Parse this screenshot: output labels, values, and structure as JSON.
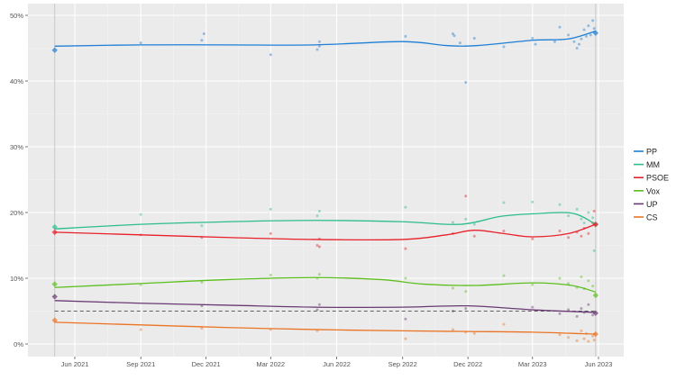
{
  "chart_data": {
    "type": "line",
    "title": "",
    "xlabel": "",
    "ylabel": "",
    "xlim": [
      "2021-04-20",
      "2023-06-20"
    ],
    "ylim": [
      -1.5,
      52
    ],
    "grid": true,
    "legend_position": "right",
    "y_ticks": [
      0,
      10,
      20,
      30,
      40,
      50
    ],
    "y_tick_labels": [
      "0%",
      "10%",
      "20%",
      "30%",
      "40%",
      "50%"
    ],
    "x_ticks": [
      "2021-06-01",
      "2021-09-01",
      "2021-12-01",
      "2022-03-01",
      "2022-06-01",
      "2022-09-01",
      "2022-12-01",
      "2023-03-01",
      "2023-06-01"
    ],
    "x_tick_labels": [
      "Jun 2021",
      "Sep 2021",
      "Dec 2021",
      "Mar 2022",
      "Jun 2022",
      "Sep 2022",
      "Dec 2022",
      "Mar 2023",
      "Jun 2023"
    ],
    "vertical_lines": [
      "2021-05-04",
      "2023-05-28"
    ],
    "threshold": 5,
    "series": [
      {
        "name": "PP",
        "color": "#1f7fd6",
        "trend": [
          [
            "2021-05-04",
            45.3
          ],
          [
            "2021-09-01",
            45.5
          ],
          [
            "2022-01-01",
            45.5
          ],
          [
            "2022-05-01",
            45.5
          ],
          [
            "2022-09-01",
            46.0
          ],
          [
            "2022-11-01",
            45.4
          ],
          [
            "2022-12-15",
            45.4
          ],
          [
            "2023-03-01",
            46.2
          ],
          [
            "2023-04-20",
            46.4
          ],
          [
            "2023-05-28",
            47.6
          ]
        ],
        "start": 44.7,
        "end": 47.3,
        "polls": [
          [
            "2021-09-01",
            45.8
          ],
          [
            "2021-11-25",
            46.2
          ],
          [
            "2021-11-28",
            47.2
          ],
          [
            "2022-03-01",
            44.0
          ],
          [
            "2022-05-05",
            44.8
          ],
          [
            "2022-05-08",
            46.0
          ],
          [
            "2022-05-08",
            45.3
          ],
          [
            "2022-09-05",
            46.8
          ],
          [
            "2022-11-10",
            47.2
          ],
          [
            "2022-11-12",
            46.9
          ],
          [
            "2022-11-20",
            45.8
          ],
          [
            "2022-11-28",
            39.8
          ],
          [
            "2022-12-10",
            46.5
          ],
          [
            "2023-01-20",
            45.2
          ],
          [
            "2023-03-01",
            46.5
          ],
          [
            "2023-03-05",
            45.6
          ],
          [
            "2023-04-01",
            46.0
          ],
          [
            "2023-04-08",
            48.2
          ],
          [
            "2023-04-20",
            47.0
          ],
          [
            "2023-04-28",
            46.0
          ],
          [
            "2023-05-02",
            45.0
          ],
          [
            "2023-05-05",
            45.6
          ],
          [
            "2023-05-08",
            46.4
          ],
          [
            "2023-05-12",
            47.8
          ],
          [
            "2023-05-15",
            46.8
          ],
          [
            "2023-05-18",
            48.4
          ],
          [
            "2023-05-21",
            47.0
          ],
          [
            "2023-05-24",
            49.2
          ],
          [
            "2023-05-26",
            48.0
          ]
        ]
      },
      {
        "name": "MM",
        "color": "#2dbd8f",
        "trend": [
          [
            "2021-05-04",
            17.5
          ],
          [
            "2021-09-01",
            18.2
          ],
          [
            "2022-01-01",
            18.6
          ],
          [
            "2022-05-01",
            18.8
          ],
          [
            "2022-09-01",
            18.6
          ],
          [
            "2022-11-20",
            18.2
          ],
          [
            "2023-01-15",
            19.4
          ],
          [
            "2023-03-01",
            19.8
          ],
          [
            "2023-04-25",
            19.9
          ],
          [
            "2023-05-28",
            18.2
          ]
        ],
        "start": 17.8,
        "end": 18.2,
        "polls": [
          [
            "2021-09-01",
            19.7
          ],
          [
            "2021-11-25",
            18.0
          ],
          [
            "2022-03-01",
            20.5
          ],
          [
            "2022-05-05",
            19.5
          ],
          [
            "2022-05-08",
            20.2
          ],
          [
            "2022-09-05",
            20.8
          ],
          [
            "2022-11-10",
            18.5
          ],
          [
            "2022-11-28",
            19.0
          ],
          [
            "2022-12-10",
            18.2
          ],
          [
            "2023-01-20",
            21.5
          ],
          [
            "2023-03-01",
            21.6
          ],
          [
            "2023-04-08",
            21.2
          ],
          [
            "2023-04-20",
            19.5
          ],
          [
            "2023-05-02",
            20.5
          ],
          [
            "2023-05-08",
            19.0
          ],
          [
            "2023-05-12",
            18.4
          ],
          [
            "2023-05-18",
            20.0
          ],
          [
            "2023-05-24",
            19.2
          ],
          [
            "2023-05-26",
            14.2
          ]
        ]
      },
      {
        "name": "PSOE",
        "color": "#e8202a",
        "trend": [
          [
            "2021-05-04",
            17.0
          ],
          [
            "2021-09-01",
            16.6
          ],
          [
            "2022-01-01",
            16.2
          ],
          [
            "2022-05-01",
            15.9
          ],
          [
            "2022-09-01",
            15.9
          ],
          [
            "2022-11-01",
            16.6
          ],
          [
            "2022-12-10",
            17.3
          ],
          [
            "2023-01-20",
            16.8
          ],
          [
            "2023-03-01",
            16.3
          ],
          [
            "2023-04-20",
            16.8
          ],
          [
            "2023-05-28",
            18.2
          ]
        ],
        "start": 17.0,
        "end": 18.2,
        "polls": [
          [
            "2021-09-01",
            16.6
          ],
          [
            "2021-11-25",
            16.2
          ],
          [
            "2022-03-01",
            16.8
          ],
          [
            "2022-05-05",
            15.0
          ],
          [
            "2022-05-08",
            16.0
          ],
          [
            "2022-05-08",
            14.8
          ],
          [
            "2022-09-05",
            14.5
          ],
          [
            "2022-11-10",
            16.8
          ],
          [
            "2022-11-28",
            22.5
          ],
          [
            "2022-12-10",
            16.4
          ],
          [
            "2023-01-20",
            17.2
          ],
          [
            "2023-03-01",
            16.0
          ],
          [
            "2023-04-08",
            17.2
          ],
          [
            "2023-04-20",
            16.2
          ],
          [
            "2023-05-02",
            17.0
          ],
          [
            "2023-05-08",
            16.4
          ],
          [
            "2023-05-12",
            17.6
          ],
          [
            "2023-05-18",
            16.8
          ],
          [
            "2023-05-24",
            18.4
          ],
          [
            "2023-05-26",
            20.2
          ]
        ]
      },
      {
        "name": "Vox",
        "color": "#5cbf1e",
        "trend": [
          [
            "2021-05-04",
            8.6
          ],
          [
            "2021-09-01",
            9.2
          ],
          [
            "2022-01-01",
            9.8
          ],
          [
            "2022-05-01",
            10.1
          ],
          [
            "2022-08-01",
            9.8
          ],
          [
            "2022-10-01",
            9.1
          ],
          [
            "2022-12-10",
            8.9
          ],
          [
            "2023-03-01",
            9.3
          ],
          [
            "2023-04-25",
            8.9
          ],
          [
            "2023-05-28",
            7.9
          ]
        ],
        "start": 9.1,
        "end": 7.4,
        "polls": [
          [
            "2021-09-01",
            9.0
          ],
          [
            "2021-11-25",
            9.4
          ],
          [
            "2022-03-01",
            10.5
          ],
          [
            "2022-05-05",
            10.0
          ],
          [
            "2022-05-08",
            10.6
          ],
          [
            "2022-09-05",
            10.0
          ],
          [
            "2022-11-10",
            8.5
          ],
          [
            "2022-11-28",
            8.0
          ],
          [
            "2023-01-20",
            10.4
          ],
          [
            "2023-03-01",
            9.0
          ],
          [
            "2023-04-08",
            10.0
          ],
          [
            "2023-04-20",
            9.2
          ],
          [
            "2023-05-02",
            8.6
          ],
          [
            "2023-05-08",
            10.2
          ],
          [
            "2023-05-12",
            8.4
          ],
          [
            "2023-05-18",
            9.6
          ],
          [
            "2023-05-24",
            8.8
          ]
        ]
      },
      {
        "name": "UP",
        "color": "#6a3a74",
        "trend": [
          [
            "2021-05-04",
            6.6
          ],
          [
            "2021-09-01",
            6.2
          ],
          [
            "2022-01-01",
            5.9
          ],
          [
            "2022-05-01",
            5.6
          ],
          [
            "2022-09-01",
            5.6
          ],
          [
            "2022-12-01",
            5.8
          ],
          [
            "2023-03-01",
            5.2
          ],
          [
            "2023-05-28",
            4.8
          ]
        ],
        "start": 7.2,
        "end": 4.7,
        "polls": [
          [
            "2021-11-25",
            5.8
          ],
          [
            "2022-05-05",
            5.2
          ],
          [
            "2022-05-08",
            6.0
          ],
          [
            "2022-09-05",
            3.8
          ],
          [
            "2022-11-10",
            5.0
          ],
          [
            "2022-11-28",
            5.4
          ],
          [
            "2023-03-01",
            5.6
          ],
          [
            "2023-04-08",
            4.6
          ],
          [
            "2023-04-20",
            5.2
          ],
          [
            "2023-05-02",
            4.2
          ],
          [
            "2023-05-08",
            5.4
          ],
          [
            "2023-05-12",
            4.8
          ],
          [
            "2023-05-18",
            6.0
          ],
          [
            "2023-05-24",
            4.4
          ]
        ]
      },
      {
        "name": "CS",
        "color": "#eb7424",
        "trend": [
          [
            "2021-05-04",
            3.3
          ],
          [
            "2021-09-01",
            2.9
          ],
          [
            "2022-01-01",
            2.5
          ],
          [
            "2022-05-01",
            2.2
          ],
          [
            "2022-09-01",
            2.0
          ],
          [
            "2022-12-01",
            1.9
          ],
          [
            "2023-03-01",
            1.8
          ],
          [
            "2023-05-28",
            1.5
          ]
        ],
        "start": 3.6,
        "end": 1.5,
        "polls": [
          [
            "2021-09-01",
            2.2
          ],
          [
            "2021-11-25",
            2.4
          ],
          [
            "2022-03-01",
            2.2
          ],
          [
            "2022-05-05",
            2.0
          ],
          [
            "2022-09-05",
            0.8
          ],
          [
            "2022-11-10",
            2.2
          ],
          [
            "2022-11-28",
            1.8
          ],
          [
            "2022-12-10",
            1.6
          ],
          [
            "2023-01-20",
            3.0
          ],
          [
            "2023-04-08",
            1.4
          ],
          [
            "2023-04-20",
            1.0
          ],
          [
            "2023-05-02",
            0.5
          ],
          [
            "2023-05-08",
            2.0
          ],
          [
            "2023-05-12",
            0.8
          ],
          [
            "2023-05-15",
            1.6
          ],
          [
            "2023-05-18",
            0.4
          ],
          [
            "2023-05-24",
            1.2
          ],
          [
            "2023-05-26",
            0.6
          ]
        ]
      }
    ]
  }
}
